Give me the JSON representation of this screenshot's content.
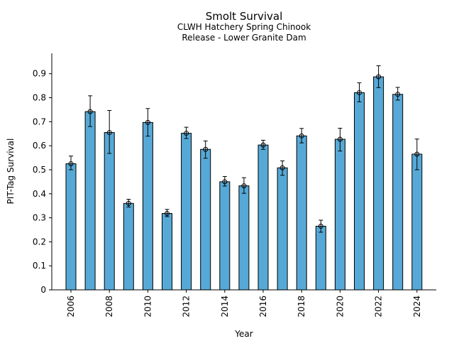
{
  "chart_data": {
    "type": "bar",
    "title": "Smolt Survival",
    "subtitle_lines": [
      "CLWH Hatchery Spring Chinook",
      "Release - Lower Granite Dam"
    ],
    "xlabel": "Year",
    "ylabel": "PIT-Tag Survival",
    "ylim": [
      0,
      0.985
    ],
    "yticks": [
      "0",
      "0.1",
      "0.2",
      "0.3",
      "0.4",
      "0.5",
      "0.6",
      "0.7",
      "0.8",
      "0.9"
    ],
    "xticks": [
      "2006",
      "2008",
      "2010",
      "2012",
      "2014",
      "2016",
      "2018",
      "2020",
      "2022",
      "2024"
    ],
    "grid": false,
    "colors": {
      "bar": "#56a9d6",
      "edge": "#000000"
    },
    "categories": [
      "2006",
      "2007",
      "2008",
      "2009",
      "2010",
      "2011",
      "2012",
      "2013",
      "2014",
      "2015",
      "2016",
      "2017",
      "2018",
      "2019",
      "2020",
      "2021",
      "2022",
      "2023",
      "2024"
    ],
    "values": [
      0.525,
      0.742,
      0.655,
      0.36,
      0.697,
      0.318,
      0.652,
      0.585,
      0.45,
      0.433,
      0.603,
      0.508,
      0.641,
      0.265,
      0.627,
      0.821,
      0.887,
      0.814,
      0.565
    ],
    "err_low": [
      0.5,
      0.68,
      0.568,
      0.345,
      0.64,
      0.305,
      0.63,
      0.548,
      0.432,
      0.402,
      0.585,
      0.477,
      0.612,
      0.24,
      0.578,
      0.783,
      0.842,
      0.79,
      0.5
    ],
    "err_high": [
      0.557,
      0.808,
      0.747,
      0.377,
      0.755,
      0.335,
      0.677,
      0.62,
      0.472,
      0.467,
      0.623,
      0.537,
      0.672,
      0.29,
      0.673,
      0.862,
      0.933,
      0.843,
      0.628
    ]
  }
}
